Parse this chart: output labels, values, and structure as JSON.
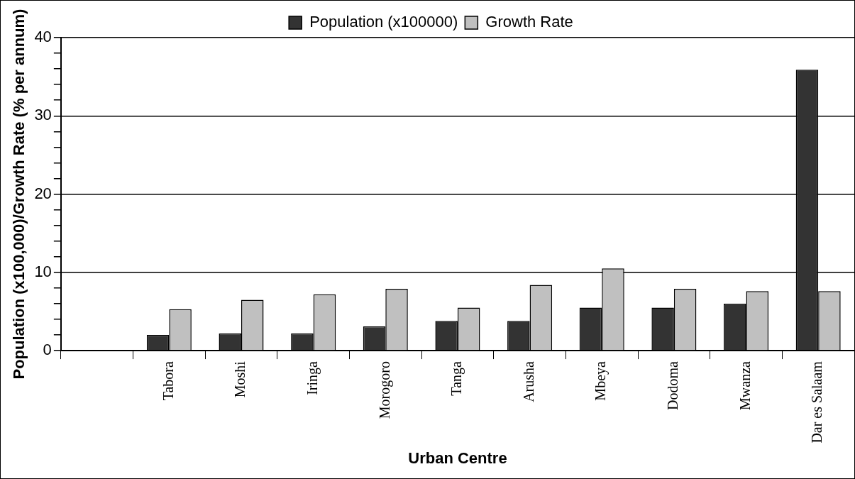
{
  "chart_data": {
    "type": "bar",
    "xlabel": "Urban Centre",
    "ylabel": "Population (x100,000)/Growth Rate (% per annum)",
    "categories": [
      null,
      "Tabora",
      "Moshi",
      "Iringa",
      "Morogoro",
      "Tanga",
      "Arusha",
      "Mbeya",
      "Dodoma",
      "Mwanza",
      "Dar es Salaam"
    ],
    "series": [
      {
        "name": "Population (x100000)",
        "color": "#333333",
        "values": [
          null,
          2.0,
          2.2,
          2.2,
          3.1,
          3.8,
          3.8,
          5.5,
          5.5,
          6.0,
          35.9
        ]
      },
      {
        "name": "Growth Rate",
        "color": "#c0c0c0",
        "values": [
          null,
          5.3,
          6.5,
          7.2,
          7.9,
          5.5,
          8.4,
          10.5,
          7.9,
          7.6,
          7.6
        ]
      }
    ],
    "ylim": [
      0,
      40
    ],
    "yticks": [
      0,
      {
        "value": 2,
        "label": null
      },
      {
        "value": 4,
        "label": null
      },
      {
        "value": 6,
        "label": null
      },
      {
        "value": 8,
        "label": null
      },
      10,
      {
        "value": 12,
        "label": null
      },
      {
        "value": 14,
        "label": null
      },
      {
        "value": 16,
        "label": null
      },
      {
        "value": 18,
        "label": null
      },
      20,
      {
        "value": 22,
        "label": null
      },
      {
        "value": 24,
        "label": null
      },
      {
        "value": 26,
        "label": null
      },
      {
        "value": 28,
        "label": null
      },
      30,
      {
        "value": 32,
        "label": null
      },
      {
        "value": 34,
        "label": null
      },
      {
        "value": 36,
        "label": null
      },
      {
        "value": 38,
        "label": null
      },
      40
    ],
    "grid": "y",
    "legend": "top"
  }
}
